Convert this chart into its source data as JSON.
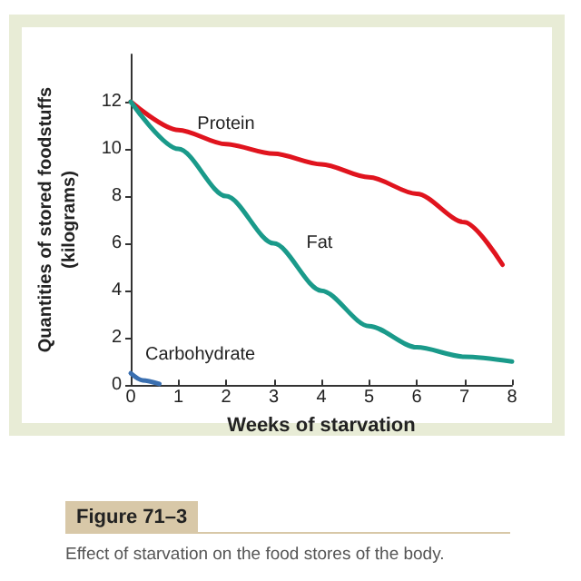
{
  "chart_data": {
    "type": "line",
    "xlabel": "Weeks of starvation",
    "ylabel": "Quantities of stored foodstuffs\n(kilograms)",
    "xlim": [
      0,
      8
    ],
    "xticks": [
      0,
      1,
      2,
      3,
      4,
      5,
      6,
      7,
      8
    ],
    "ylim": [
      0,
      14
    ],
    "yticks": [
      0,
      2,
      4,
      6,
      8,
      10,
      12
    ],
    "grid": false,
    "legend": false,
    "marker": "none",
    "line_style": "solid",
    "series": [
      {
        "name": "Protein",
        "color": "#e0141e",
        "x": [
          0,
          1,
          2,
          3,
          4,
          5,
          6,
          7,
          7.8
        ],
        "values": [
          12,
          10.8,
          10.2,
          9.8,
          9.35,
          8.8,
          8.1,
          6.9,
          5.1
        ]
      },
      {
        "name": "Fat",
        "color": "#1a9a8a",
        "x": [
          0,
          1,
          2,
          3,
          4,
          5,
          6,
          7,
          8
        ],
        "values": [
          12,
          10,
          8,
          6,
          4,
          2.5,
          1.6,
          1.2,
          1
        ]
      },
      {
        "name": "Carbohydrate",
        "color": "#3a6fb0",
        "x": [
          0,
          0.25,
          0.6
        ],
        "values": [
          0.5,
          0.2,
          0.05
        ]
      }
    ],
    "annotations": [
      "Figure 71–3",
      "Effect of starvation on the food stores of the body."
    ]
  }
}
